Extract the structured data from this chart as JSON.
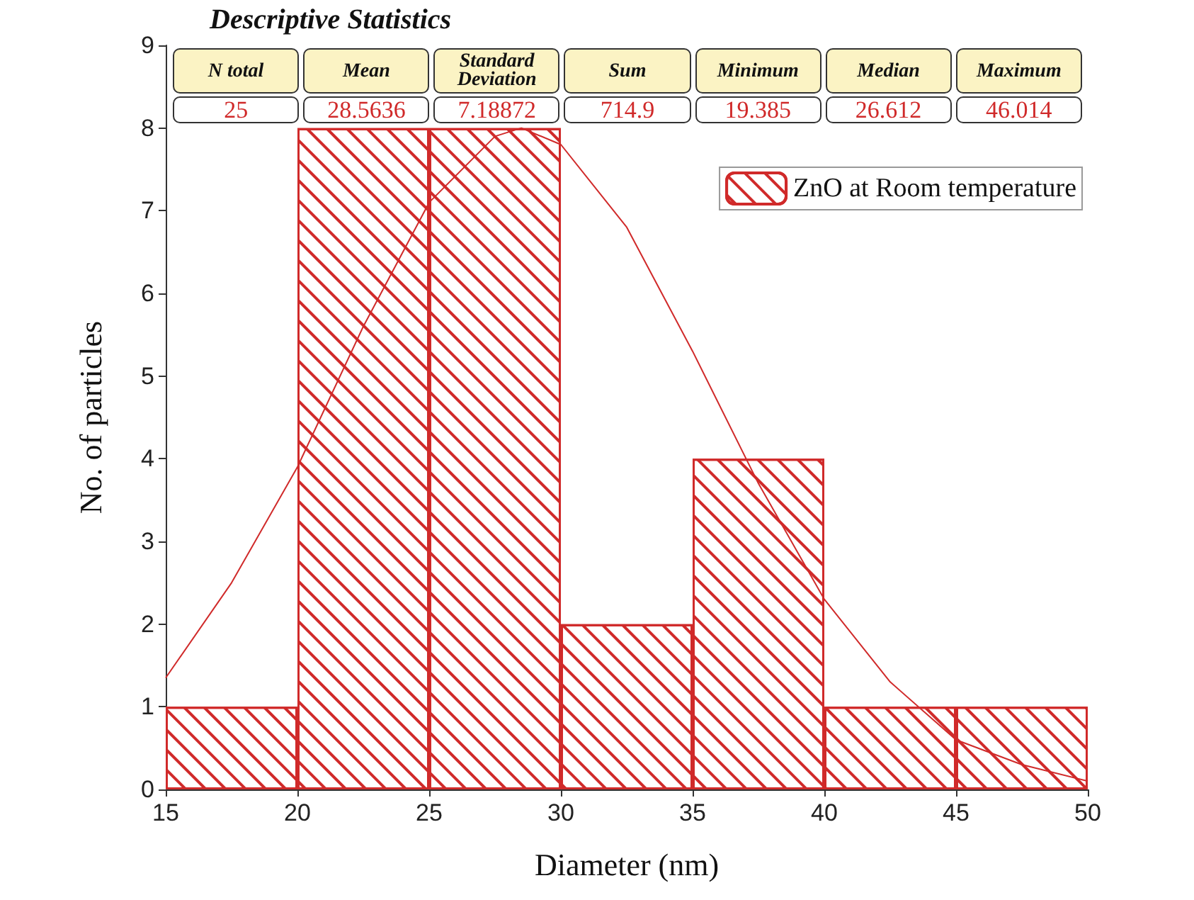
{
  "chart_data": {
    "type": "histogram",
    "xlabel": "Diameter (nm)",
    "ylabel": "No. of particles",
    "bins": [
      15,
      20,
      25,
      30,
      35,
      40,
      45,
      50
    ],
    "series": [
      {
        "name": "ZnO at Room temperature",
        "color": "#d02a2a",
        "values": [
          1,
          8,
          8,
          2,
          4,
          1,
          1
        ]
      },
      {
        "type": "line",
        "color": "#d02a2a",
        "x": [
          15,
          17.5,
          20,
          22.5,
          25,
          27.5,
          28.5,
          30,
          32.5,
          35,
          37.5,
          40,
          42.5,
          45,
          47.5,
          50
        ],
        "values": [
          1.35,
          2.5,
          3.9,
          5.6,
          7.1,
          7.9,
          8.0,
          7.8,
          6.8,
          5.3,
          3.7,
          2.3,
          1.3,
          0.6,
          0.3,
          0.1
        ]
      }
    ],
    "xlim": [
      15,
      50
    ],
    "xticks": [
      15,
      20,
      25,
      30,
      35,
      40,
      45,
      50
    ],
    "ylim": [
      0,
      9
    ],
    "yticks": [
      0,
      1,
      2,
      3,
      4,
      5,
      6,
      7,
      8,
      9
    ],
    "legend": "top right",
    "grid": false,
    "marker": "none",
    "annotations": [
      "Descriptive Statistics",
      "N total",
      "Mean",
      "Standard Deviation",
      "Sum",
      "Minimum",
      "Median",
      "Maximum",
      "25",
      "28.5636",
      "7.18872",
      "714.9",
      "19.385",
      "26.612",
      "46.014"
    ]
  }
}
